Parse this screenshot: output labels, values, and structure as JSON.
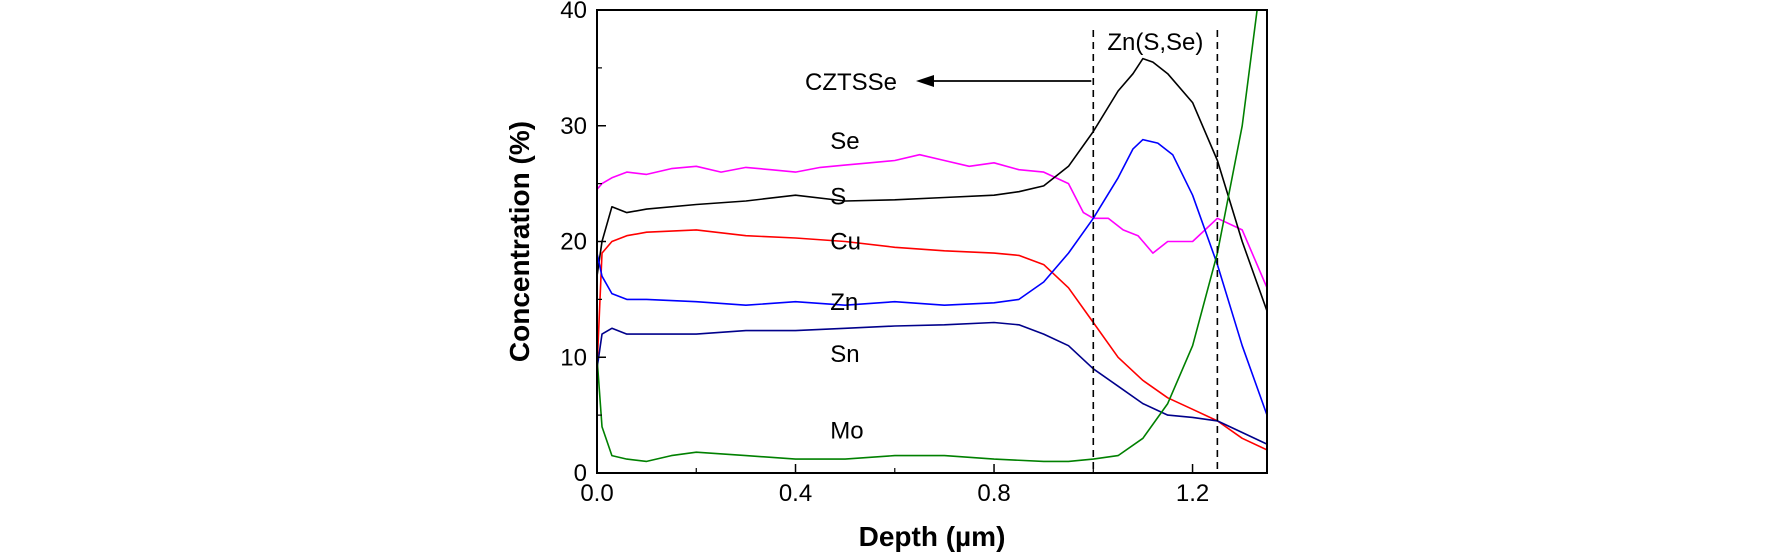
{
  "chart_data": {
    "type": "line",
    "xlabel": "Depth (µm)",
    "ylabel": "Concentration (%)",
    "xlim": [
      0.0,
      1.35
    ],
    "ylim": [
      0,
      40
    ],
    "x_ticks": [
      "0.0",
      "0.4",
      "0.8",
      "1.2"
    ],
    "x_tick_values": [
      0.0,
      0.4,
      0.8,
      1.2
    ],
    "y_ticks": [
      "0",
      "10",
      "20",
      "30",
      "40"
    ],
    "y_tick_values": [
      0,
      10,
      20,
      30,
      40
    ],
    "grid": false,
    "series": [
      {
        "name": "Se",
        "color": "#ff00ff",
        "x": [
          0.0,
          0.01,
          0.03,
          0.06,
          0.1,
          0.15,
          0.2,
          0.25,
          0.3,
          0.35,
          0.4,
          0.45,
          0.5,
          0.55,
          0.6,
          0.65,
          0.7,
          0.75,
          0.8,
          0.85,
          0.9,
          0.95,
          0.98,
          1.0,
          1.03,
          1.06,
          1.09,
          1.12,
          1.15,
          1.2,
          1.25,
          1.3,
          1.35
        ],
        "y": [
          24.5,
          25.0,
          25.5,
          26.0,
          25.8,
          26.3,
          26.5,
          26.0,
          26.4,
          26.2,
          26.0,
          26.4,
          26.6,
          26.8,
          27.0,
          27.5,
          27.0,
          26.5,
          26.8,
          26.2,
          26.0,
          25.0,
          22.5,
          22.0,
          22.0,
          21.0,
          20.5,
          19.0,
          20.0,
          20.0,
          22.0,
          21.0,
          16.0
        ]
      },
      {
        "name": "S",
        "color": "#000000",
        "x": [
          0.0,
          0.01,
          0.03,
          0.06,
          0.1,
          0.2,
          0.3,
          0.4,
          0.5,
          0.6,
          0.7,
          0.8,
          0.85,
          0.9,
          0.95,
          1.0,
          1.05,
          1.08,
          1.1,
          1.12,
          1.15,
          1.2,
          1.25,
          1.3,
          1.35
        ],
        "y": [
          17.0,
          20.0,
          23.0,
          22.5,
          22.8,
          23.2,
          23.5,
          24.0,
          23.5,
          23.6,
          23.8,
          24.0,
          24.3,
          24.8,
          26.5,
          29.5,
          33.0,
          34.5,
          35.8,
          35.5,
          34.5,
          32.0,
          27.0,
          20.0,
          14.0
        ]
      },
      {
        "name": "Cu",
        "color": "#ff0000",
        "x": [
          0.0,
          0.01,
          0.03,
          0.06,
          0.1,
          0.2,
          0.3,
          0.4,
          0.5,
          0.6,
          0.7,
          0.8,
          0.85,
          0.9,
          0.95,
          1.0,
          1.05,
          1.1,
          1.15,
          1.2,
          1.25,
          1.3,
          1.35
        ],
        "y": [
          9.0,
          19.0,
          20.0,
          20.5,
          20.8,
          21.0,
          20.5,
          20.3,
          20.0,
          19.5,
          19.2,
          19.0,
          18.8,
          18.0,
          16.0,
          13.0,
          10.0,
          8.0,
          6.5,
          5.5,
          4.5,
          3.0,
          2.0
        ]
      },
      {
        "name": "Zn",
        "color": "#0000ff",
        "x": [
          0.0,
          0.01,
          0.03,
          0.06,
          0.1,
          0.2,
          0.3,
          0.4,
          0.5,
          0.6,
          0.7,
          0.8,
          0.85,
          0.9,
          0.95,
          1.0,
          1.05,
          1.08,
          1.1,
          1.13,
          1.16,
          1.2,
          1.25,
          1.3,
          1.35
        ],
        "y": [
          19.0,
          17.0,
          15.5,
          15.0,
          15.0,
          14.8,
          14.5,
          14.8,
          14.5,
          14.8,
          14.5,
          14.7,
          15.0,
          16.5,
          19.0,
          22.0,
          25.5,
          28.0,
          28.8,
          28.5,
          27.5,
          24.0,
          18.0,
          11.0,
          5.0
        ]
      },
      {
        "name": "Sn",
        "color": "#00008b",
        "x": [
          0.0,
          0.01,
          0.03,
          0.06,
          0.1,
          0.2,
          0.3,
          0.4,
          0.5,
          0.6,
          0.7,
          0.8,
          0.85,
          0.9,
          0.95,
          1.0,
          1.05,
          1.1,
          1.15,
          1.2,
          1.25,
          1.3,
          1.35
        ],
        "y": [
          9.0,
          12.0,
          12.5,
          12.0,
          12.0,
          12.0,
          12.3,
          12.3,
          12.5,
          12.7,
          12.8,
          13.0,
          12.8,
          12.0,
          11.0,
          9.0,
          7.5,
          6.0,
          5.0,
          4.8,
          4.5,
          3.5,
          2.5
        ]
      },
      {
        "name": "Mo",
        "color": "#008000",
        "x": [
          0.0,
          0.01,
          0.03,
          0.06,
          0.1,
          0.15,
          0.2,
          0.3,
          0.4,
          0.5,
          0.6,
          0.7,
          0.8,
          0.9,
          0.95,
          1.0,
          1.05,
          1.1,
          1.15,
          1.2,
          1.25,
          1.3,
          1.33
        ],
        "y": [
          10.0,
          4.0,
          1.5,
          1.2,
          1.0,
          1.5,
          1.8,
          1.5,
          1.2,
          1.2,
          1.5,
          1.5,
          1.2,
          1.0,
          1.0,
          1.2,
          1.5,
          3.0,
          6.0,
          11.0,
          19.0,
          30.0,
          40.0
        ]
      }
    ],
    "series_label_positions": [
      {
        "name": "Se",
        "x": 0.47,
        "y": 28.0
      },
      {
        "name": "S",
        "x": 0.47,
        "y": 23.2
      },
      {
        "name": "Cu",
        "x": 0.47,
        "y": 19.3
      },
      {
        "name": "Zn",
        "x": 0.47,
        "y": 14.1
      },
      {
        "name": "Sn",
        "x": 0.47,
        "y": 9.6
      },
      {
        "name": "Mo",
        "x": 0.47,
        "y": 3.0
      }
    ],
    "annotations": {
      "region_label": "Zn(S,Se)",
      "region_x": [
        1.0,
        1.25
      ],
      "arrow_label": "CZTSSe"
    }
  }
}
